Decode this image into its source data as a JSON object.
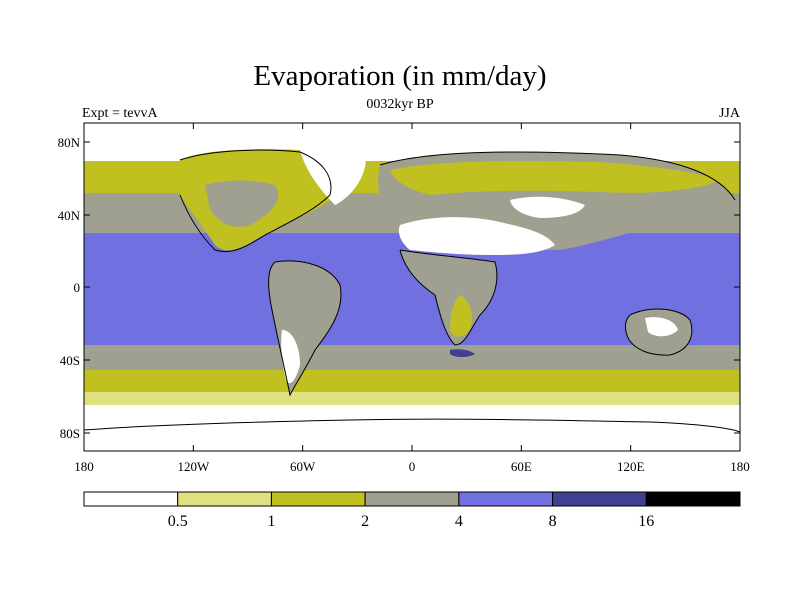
{
  "header": {
    "title": "Evaporation (in mm/day)",
    "subtitle": "0032kyr BP",
    "left_label": "Expt = tevvA",
    "right_label": "JJA"
  },
  "map": {
    "lat_ticks": [
      "80N",
      "40N",
      "0",
      "40S",
      "80S"
    ],
    "lon_ticks": [
      "180",
      "120W",
      "60W",
      "0",
      "60E",
      "120E",
      "180"
    ]
  },
  "colorbar": {
    "colors": [
      "#ffffff",
      "#e0e080",
      "#c0c020",
      "#a0a090",
      "#7070e0",
      "#404090",
      "#000000"
    ],
    "labels": [
      "0.5",
      "1",
      "2",
      "4",
      "8",
      "16"
    ]
  }
}
